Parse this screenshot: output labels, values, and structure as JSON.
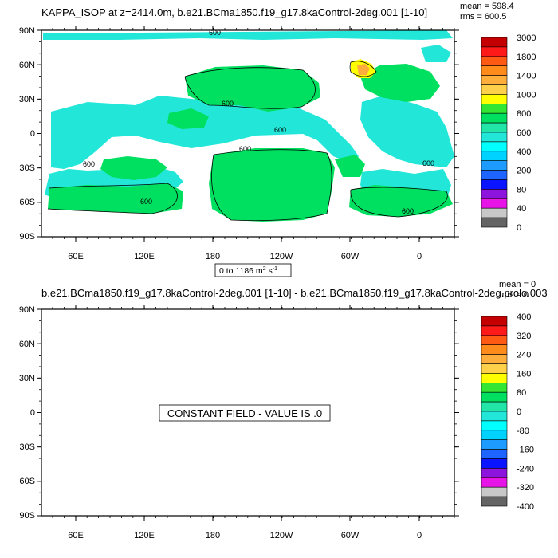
{
  "top_panel": {
    "title": "KAPPA_ISOP at z=2414.0m, b.e21.BCma1850.f19_g17.8kaControl-2deg.001 [1-10]",
    "stats_mean": "mean = 598.4",
    "stats_rms": "rms = 600.5",
    "range_label_main": "0 to 1186 m",
    "range_label_sup": "2",
    "range_label_tail": " s",
    "range_label_sup2": "-1",
    "contour_labels": [
      "600",
      "600",
      "600",
      "600",
      "600",
      "600",
      "600",
      "600"
    ],
    "colorbar": {
      "labels": [
        "3000",
        "1800",
        "1400",
        "1000",
        "800",
        "600",
        "400",
        "200",
        "80",
        "40",
        "0"
      ],
      "colors": [
        "#c40000",
        "#ff1a1a",
        "#ff5a14",
        "#ff8c1a",
        "#ffae3c",
        "#ffd04a",
        "#ffff00",
        "#33e633",
        "#00e060",
        "#22e6a8",
        "#22e6d8",
        "#00ffff",
        "#00d2ff",
        "#1e9bff",
        "#1e64ff",
        "#0a14ff",
        "#8c14dc",
        "#e614e6",
        "#c8c8c8",
        "#646464"
      ]
    }
  },
  "bottom_panel": {
    "title": "b.e21.BCma1850.f19_g17.8kaControl-2deg.001 [1-10] - b.e21.BCma1850.f19_g17.8kaControl-2deg.prolo.003",
    "stats_mean": "mean = 0",
    "stats_rms": "rms = 0",
    "message": "CONSTANT FIELD - VALUE IS .0",
    "colorbar": {
      "labels": [
        "400",
        "320",
        "240",
        "160",
        "80",
        "0",
        "-80",
        "-160",
        "-240",
        "-320",
        "-400"
      ],
      "colors": [
        "#c40000",
        "#ff1a1a",
        "#ff5a14",
        "#ff8c1a",
        "#ffae3c",
        "#ffd04a",
        "#ffff00",
        "#33e633",
        "#00e060",
        "#22e6a8",
        "#22e6d8",
        "#00ffff",
        "#00d2ff",
        "#1e9bff",
        "#1e64ff",
        "#0a14ff",
        "#8c14dc",
        "#e614e6",
        "#c8c8c8",
        "#646464"
      ]
    }
  },
  "axes": {
    "lat_labels": [
      "90N",
      "60N",
      "30N",
      "0",
      "30S",
      "60S",
      "90S"
    ],
    "lon_labels": [
      "60E",
      "120E",
      "180",
      "120W",
      "60W",
      "0"
    ]
  },
  "field_colors": {
    "high": "#00e060",
    "mid": "#22e6d8",
    "hot_yellow": "#ffff00",
    "hot_orange": "#ffae3c"
  }
}
